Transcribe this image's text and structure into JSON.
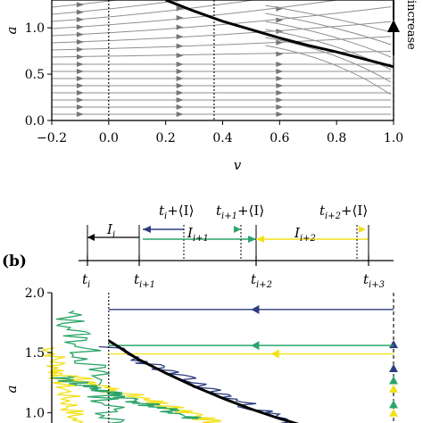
{
  "chart_data": [
    {
      "type": "line",
      "panel": "a",
      "xlabel": "v",
      "ylabel": "a",
      "xlim": [
        -0.2,
        1.0
      ],
      "ylim": [
        0.0,
        1.3
      ],
      "xticks": [
        "−0.2",
        "0.0",
        "0.2",
        "0.4",
        "0.6",
        "0.8",
        "1.0"
      ],
      "yticks": [
        "0.0",
        "0.5",
        "1.0"
      ],
      "side_label": "increase",
      "grid": false,
      "series": [
        {
          "x": [
            0.2,
            0.3,
            0.4,
            0.5,
            0.6,
            0.7,
            0.8,
            0.9,
            1.0
          ],
          "y": [
            1.3,
            1.18,
            1.07,
            0.98,
            0.89,
            0.81,
            0.74,
            0.66,
            0.58
          ]
        }
      ],
      "vlines": [
        0.0,
        0.37,
        1.0
      ]
    },
    {
      "type": "timeline",
      "panel_label": "(b)",
      "tick_labels": [
        "t",
        "t",
        "t",
        "t"
      ],
      "tick_subscripts": [
        "i",
        "i+1",
        "i+2",
        "i+3"
      ],
      "interval_labels": [
        "I",
        "I",
        "I"
      ],
      "interval_subscripts": [
        "i",
        "i+1",
        "i+2"
      ],
      "offset_label_prefix": "t",
      "offset_label_suffix": "+⟨I⟩",
      "offset_subscripts": [
        "i",
        "i+1",
        "i+2"
      ],
      "colors": [
        "#000000",
        "#2c3c7e",
        "#2aa468",
        "#f2e11a"
      ]
    },
    {
      "type": "line",
      "panel": "b",
      "ylabel": "a",
      "xlim": [
        -0.2,
        1.0
      ],
      "ylim": [
        0.75,
        2.0
      ],
      "yticks": [
        "1.0",
        "1.5",
        "2.0"
      ],
      "grid": false,
      "series": [
        {
          "x": [
            0.0,
            0.1,
            0.2,
            0.3,
            0.4,
            0.5,
            0.6,
            0.7,
            0.8
          ],
          "y": [
            1.6,
            1.45,
            1.33,
            1.22,
            1.12,
            1.03,
            0.95,
            0.88,
            0.8
          ]
        }
      ],
      "resets": [
        {
          "color": "#2c3c7e",
          "y": 1.86
        },
        {
          "color": "#2aa468",
          "y": 1.56
        },
        {
          "color": "#f2e11a",
          "y": 1.49
        }
      ]
    }
  ]
}
